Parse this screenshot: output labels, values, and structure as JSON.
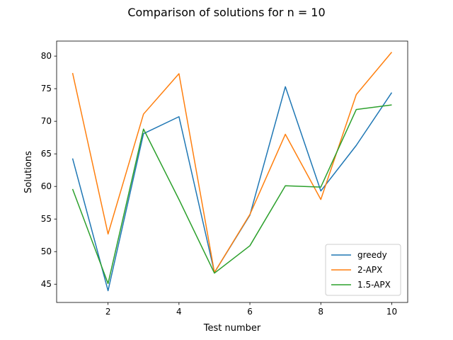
{
  "chart_data": {
    "type": "line",
    "title": "Comparison of solutions for n = 10",
    "xlabel": "Test number",
    "ylabel": "Solutions",
    "xlim": [
      0.55,
      10.45
    ],
    "ylim": [
      42.2,
      82.3
    ],
    "xticks": [
      2,
      4,
      6,
      8,
      10
    ],
    "yticks": [
      45,
      50,
      55,
      60,
      65,
      70,
      75,
      80
    ],
    "grid": false,
    "legend_position": "lower right",
    "x": [
      1,
      2,
      3,
      4,
      5,
      6,
      7,
      8,
      9,
      10
    ],
    "series": [
      {
        "name": "greedy",
        "color": "#1f77b4",
        "values": [
          64.3,
          44.0,
          68.1,
          70.7,
          46.8,
          55.6,
          75.3,
          59.3,
          66.3,
          74.4
        ]
      },
      {
        "name": "2-APX",
        "color": "#ff7f0e",
        "values": [
          77.4,
          52.7,
          71.1,
          77.3,
          46.8,
          55.7,
          68.0,
          58.0,
          74.1,
          80.6
        ]
      },
      {
        "name": "1.5-APX",
        "color": "#2ca02c",
        "values": [
          59.6,
          45.1,
          68.8,
          58.0,
          46.7,
          50.9,
          60.1,
          59.9,
          71.8,
          72.5
        ]
      }
    ]
  }
}
